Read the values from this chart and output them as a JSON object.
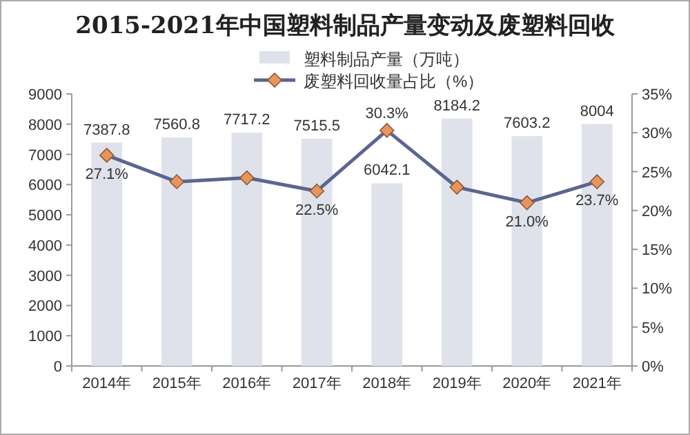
{
  "chart_data": {
    "type": "bar",
    "title": "2015-2021年中国塑料制品产量变动及废塑料回收",
    "categories": [
      "2014年",
      "2015年",
      "2016年",
      "2017年",
      "2018年",
      "2019年",
      "2020年",
      "2021年"
    ],
    "series": [
      {
        "name": "塑料制品产量（万吨）",
        "color": "#dfe2ea",
        "values": [
          7387.8,
          7560.8,
          7717.2,
          7515.5,
          6042.1,
          8184.2,
          7603.2,
          8004
        ],
        "value_labels": [
          "7387.8",
          "7560.8",
          "7717.2",
          "7515.5",
          "6042.1",
          "8184.2",
          "7603.2",
          "8004"
        ]
      },
      {
        "name": "废塑料回收量占比（%）",
        "type": "line",
        "axis": "y2",
        "color": "#5a6690",
        "marker": "diamond",
        "values": [
          27.1,
          23.7,
          24.2,
          22.5,
          30.3,
          23.0,
          21.0,
          23.7
        ],
        "value_labels": [
          "27.1%",
          null,
          null,
          "22.5%",
          "30.3%",
          null,
          "21.0%",
          "23.7%"
        ]
      }
    ],
    "ylim": [
      0,
      9000
    ],
    "yticks": [
      0,
      1000,
      2000,
      3000,
      4000,
      5000,
      6000,
      7000,
      8000,
      9000
    ],
    "y2lim": [
      0,
      35
    ],
    "y2ticks": [
      {
        "value": 0,
        "label": "0%"
      },
      {
        "value": 5,
        "label": "5%"
      },
      {
        "value": 10,
        "label": "10%"
      },
      {
        "value": 15,
        "label": "15%"
      },
      {
        "value": 20,
        "label": "20%"
      },
      {
        "value": 25,
        "label": "25%"
      },
      {
        "value": 30,
        "label": "30%"
      },
      {
        "value": 35,
        "label": "35%"
      }
    ],
    "legend": "top",
    "grid": false
  }
}
